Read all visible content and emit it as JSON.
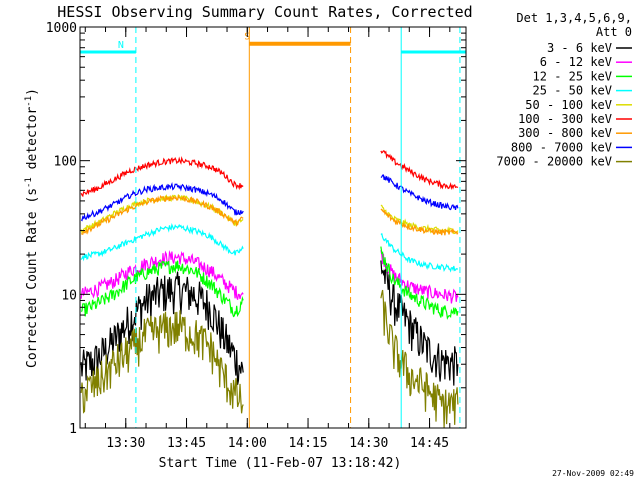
{
  "chart_data": {
    "type": "line",
    "title": "HESSI Observing Summary Count Rates, Corrected",
    "xlabel": "Start Time (11-Feb-07 13:18:42)",
    "ylabel_main": "Corrected Count Rate (s",
    "ylabel_sup1": "-1",
    "ylabel_mid": " detector",
    "ylabel_sup2": "-1",
    "ylabel_end": ")",
    "yscale": "log",
    "ylim": [
      1,
      1000
    ],
    "xlim": [
      "13:18:42",
      "14:54:00"
    ],
    "x_ticks": [
      "13:30",
      "13:45",
      "14:00",
      "14:15",
      "14:30",
      "14:45"
    ],
    "y_ticks": [
      "1",
      "10",
      "100",
      "1000"
    ],
    "legend_title_1": "Det 1,3,4,5,6,9,",
    "legend_title_2": "Att 0",
    "legend_position": "top-right",
    "timestamp": "27-Nov-2009 02:49",
    "series": [
      {
        "name": "3 - 6 keV",
        "color": "#000000",
        "times": [
          "13:19",
          "13:23",
          "13:27",
          "13:31",
          "13:35",
          "13:39",
          "13:43",
          "13:47",
          "13:51",
          "13:54",
          "13:57",
          "13:59",
          "14:33",
          "14:36",
          "14:40",
          "14:44",
          "14:48",
          "14:52"
        ],
        "values": [
          2.8,
          3.3,
          4.5,
          6.5,
          9,
          10.5,
          11,
          10,
          8,
          5,
          3.4,
          2.6,
          17,
          9,
          6,
          4,
          3.2,
          3
        ]
      },
      {
        "name": "6 - 12 keV",
        "color": "#ff00ff",
        "times": [
          "13:19",
          "13:23",
          "13:27",
          "13:31",
          "13:35",
          "13:39",
          "13:43",
          "13:47",
          "13:51",
          "13:54",
          "13:57",
          "13:59",
          "14:33",
          "14:36",
          "14:40",
          "14:44",
          "14:48",
          "14:52"
        ],
        "values": [
          10,
          11,
          12.5,
          15,
          17,
          18.5,
          19,
          17.5,
          15,
          12.5,
          10.5,
          10,
          20,
          14,
          11.5,
          10.5,
          10,
          9.5
        ]
      },
      {
        "name": "12 - 25 keV",
        "color": "#00ff00",
        "times": [
          "13:19",
          "13:23",
          "13:27",
          "13:31",
          "13:35",
          "13:39",
          "13:43",
          "13:47",
          "13:51",
          "13:54",
          "13:57",
          "13:59",
          "14:33",
          "14:36",
          "14:40",
          "14:44",
          "14:48",
          "14:52"
        ],
        "values": [
          7.5,
          8.5,
          10,
          12.5,
          14.5,
          16,
          16.5,
          15,
          12,
          9.5,
          7.5,
          9,
          21,
          13,
          10,
          8.5,
          7.5,
          7.5
        ]
      },
      {
        "name": "25 - 50 keV",
        "color": "#00ffff",
        "times": [
          "13:19",
          "13:23",
          "13:27",
          "13:31",
          "13:35",
          "13:39",
          "13:43",
          "13:47",
          "13:51",
          "13:54",
          "13:57",
          "13:59",
          "14:33",
          "14:36",
          "14:40",
          "14:44",
          "14:48",
          "14:52"
        ],
        "values": [
          19,
          20,
          22,
          25,
          28,
          31,
          32,
          30,
          27,
          23,
          20,
          22,
          28,
          22,
          18,
          16.5,
          16,
          15.5
        ]
      },
      {
        "name": "50 - 100 keV",
        "color": "#dddd00",
        "times": [
          "13:19",
          "13:23",
          "13:27",
          "13:31",
          "13:35",
          "13:39",
          "13:43",
          "13:47",
          "13:51",
          "13:54",
          "13:57",
          "13:59",
          "14:33",
          "14:36",
          "14:40",
          "14:44",
          "14:48",
          "14:52"
        ],
        "values": [
          30,
          34,
          40,
          46,
          50,
          52,
          53,
          50,
          45,
          40,
          34,
          36,
          45,
          37,
          33,
          31,
          30,
          30
        ]
      },
      {
        "name": "100 - 300 keV",
        "color": "#ff0000",
        "times": [
          "13:19",
          "13:23",
          "13:27",
          "13:31",
          "13:35",
          "13:39",
          "13:43",
          "13:47",
          "13:51",
          "13:54",
          "13:57",
          "13:59",
          "14:33",
          "14:36",
          "14:40",
          "14:44",
          "14:48",
          "14:52"
        ],
        "values": [
          56,
          62,
          72,
          84,
          92,
          98,
          100,
          96,
          90,
          80,
          66,
          65,
          120,
          100,
          84,
          72,
          66,
          63
        ]
      },
      {
        "name": "300 - 800 keV",
        "color": "#ff9900",
        "times": [
          "13:19",
          "13:23",
          "13:27",
          "13:31",
          "13:35",
          "13:39",
          "13:43",
          "13:47",
          "13:51",
          "13:54",
          "13:57",
          "13:59",
          "14:33",
          "14:36",
          "14:40",
          "14:44",
          "14:48",
          "14:52"
        ],
        "values": [
          29,
          33,
          38,
          44,
          49,
          52,
          53,
          50,
          45,
          40,
          34,
          37,
          43,
          36,
          32,
          30,
          29,
          29
        ]
      },
      {
        "name": "800 - 7000 keV",
        "color": "#0000ff",
        "times": [
          "13:19",
          "13:23",
          "13:27",
          "13:31",
          "13:35",
          "13:39",
          "13:43",
          "13:47",
          "13:51",
          "13:54",
          "13:57",
          "13:59",
          "14:33",
          "14:36",
          "14:40",
          "14:44",
          "14:48",
          "14:52"
        ],
        "values": [
          37,
          41,
          47,
          55,
          61,
          63,
          64,
          61,
          56,
          50,
          41,
          42,
          78,
          68,
          57,
          50,
          46,
          44
        ]
      },
      {
        "name": "7000 - 20000 keV",
        "color": "#808000",
        "times": [
          "13:19",
          "13:23",
          "13:27",
          "13:31",
          "13:35",
          "13:39",
          "13:43",
          "13:47",
          "13:51",
          "13:54",
          "13:57",
          "13:59",
          "14:33",
          "14:36",
          "14:40",
          "14:44",
          "14:48",
          "14:52"
        ],
        "values": [
          1.8,
          2.2,
          3,
          3.8,
          5,
          5.5,
          5.8,
          5,
          4,
          2.5,
          1.8,
          1.5,
          9,
          4,
          2.5,
          2,
          1.5,
          1.5
        ]
      }
    ],
    "flags": [
      {
        "label": "N",
        "color": "#00ffff",
        "start": "13:18:42",
        "end": "13:32:30",
        "value": 650
      },
      {
        "label": "",
        "color": "#00ffff",
        "start": "14:38:00",
        "end": "14:54:00",
        "value": 650
      },
      {
        "label": "S",
        "color": "#ff9900",
        "start": "14:00:30",
        "end": "14:25:30",
        "value": 750
      }
    ],
    "night_boundaries": [
      "13:32:30",
      "14:38:00",
      "14:52:30"
    ],
    "saa_boundaries": [
      "14:00:30",
      "14:25:30"
    ]
  }
}
